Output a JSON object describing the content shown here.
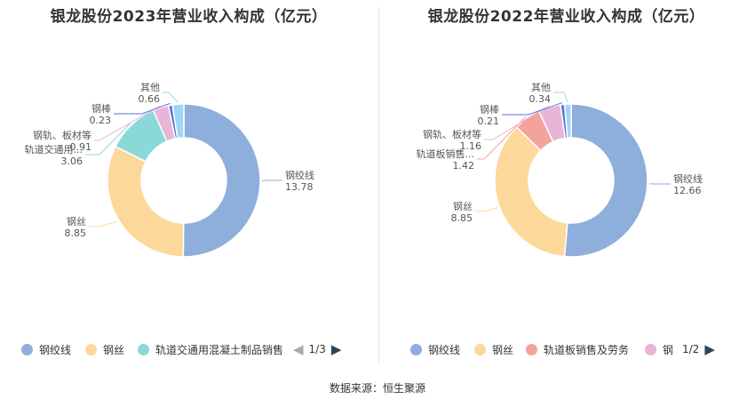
{
  "source": "数据来源：恒生聚源",
  "chart_data": [
    {
      "type": "pie",
      "title": "银龙股份2023年营业收入构成（亿元）",
      "slices": [
        {
          "name": "钢绞线",
          "label": "钢绞线",
          "value": 13.78,
          "value_text": "13.78",
          "color": "#8eaedb"
        },
        {
          "name": "钢丝",
          "label": "钢丝",
          "value": 8.85,
          "value_text": "8.85",
          "color": "#fdd89b"
        },
        {
          "name": "轨道交通用混凝土制品销售",
          "label": "轨道交通用...",
          "value": 3.06,
          "value_text": "3.06",
          "color": "#8ad8d8"
        },
        {
          "name": "钢轨、板材等",
          "label": "钢轨、板材等",
          "value": 0.91,
          "value_text": "0.91",
          "color": "#e8b5d8"
        },
        {
          "name": "钢棒",
          "label": "钢棒",
          "value": 0.23,
          "value_text": "0.23",
          "color": "#5a72d9"
        },
        {
          "name": "其他",
          "label": "其他",
          "value": 0.66,
          "value_text": "0.66",
          "color": "#9fd6f5"
        }
      ],
      "legend": {
        "placement": "bottom",
        "items": [
          "钢绞线",
          "钢丝",
          "轨道交通用混凝土制品销售"
        ],
        "colors": [
          "#8eaedb",
          "#fdd89b",
          "#8ad8d8"
        ],
        "page": "1/3"
      }
    },
    {
      "type": "pie",
      "title": "银龙股份2022年营业收入构成（亿元）",
      "slices": [
        {
          "name": "钢绞线",
          "label": "钢绞线",
          "value": 12.66,
          "value_text": "12.66",
          "color": "#8eaedb"
        },
        {
          "name": "钢丝",
          "label": "钢丝",
          "value": 8.85,
          "value_text": "8.85",
          "color": "#fdd89b"
        },
        {
          "name": "轨道板销售及劳务",
          "label": "轨道板销售...",
          "value": 1.42,
          "value_text": "1.42",
          "color": "#f4a39b"
        },
        {
          "name": "钢轨、板材等",
          "label": "钢轨、板材等",
          "value": 1.16,
          "value_text": "1.16",
          "color": "#e8b5d8"
        },
        {
          "name": "钢棒",
          "label": "钢棒",
          "value": 0.21,
          "value_text": "0.21",
          "color": "#5a72d9"
        },
        {
          "name": "其他",
          "label": "其他",
          "value": 0.34,
          "value_text": "0.34",
          "color": "#9fd6f5"
        }
      ],
      "legend": {
        "placement": "bottom",
        "items": [
          "钢绞线",
          "钢丝",
          "轨道板销售及劳务",
          "钢"
        ],
        "colors": [
          "#8eaedb",
          "#fdd89b",
          "#f4a39b",
          "#e8b5d8"
        ],
        "page": "1/2"
      }
    }
  ]
}
